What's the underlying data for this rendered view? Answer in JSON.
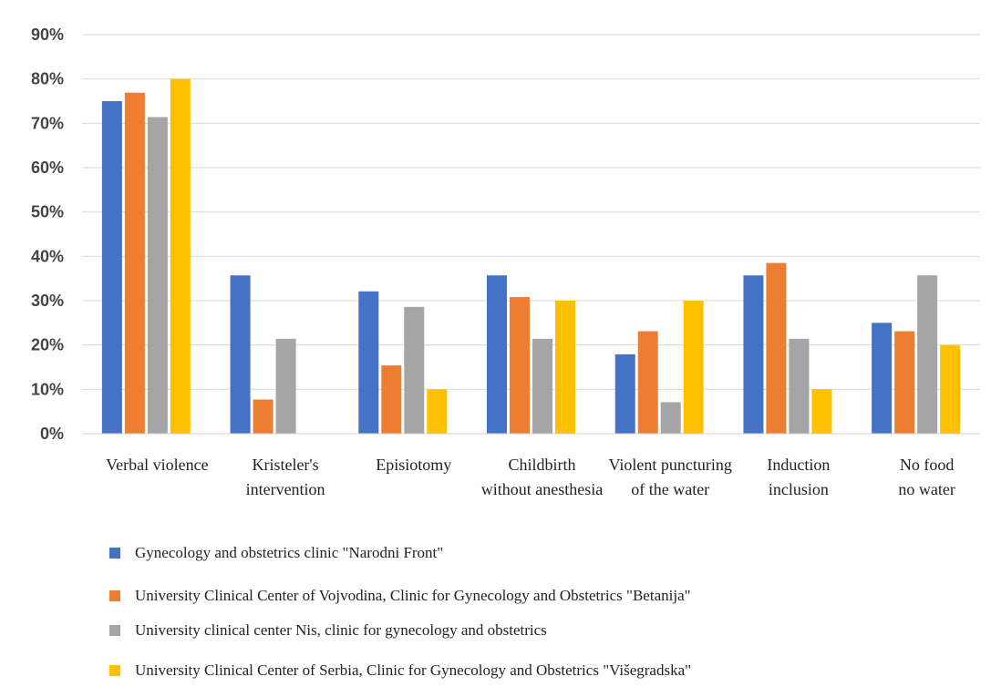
{
  "chart_data": {
    "type": "bar",
    "categories": [
      [
        "Verbal violence"
      ],
      [
        "Kristeler's",
        "intervention"
      ],
      [
        "Episiotomy"
      ],
      [
        "Childbirth",
        "without anesthesia"
      ],
      [
        "Violent puncturing",
        "of the water"
      ],
      [
        "Induction",
        "inclusion"
      ],
      [
        "No food",
        "no water"
      ]
    ],
    "ylim": [
      0,
      90
    ],
    "yticks": [
      "0%",
      "10%",
      "20%",
      "30%",
      "40%",
      "50%",
      "60%",
      "70%",
      "80%",
      "90%"
    ],
    "grid": true,
    "legend_position": "bottom",
    "series": [
      {
        "name": "Gynecology and obstetrics clinic \"Narodni Front\"",
        "color": "#4472C4",
        "values": [
          75,
          35.7,
          32.1,
          35.7,
          17.9,
          35.7,
          25
        ]
      },
      {
        "name": "University Clinical Center of Vojvodina, Clinic for Gynecology and Obstetrics \"Betanija\"",
        "color": "#ED7D31",
        "values": [
          76.9,
          7.7,
          15.4,
          30.8,
          23.1,
          38.5,
          23.1
        ]
      },
      {
        "name": "University clinical center Nis, clinic for gynecology and obstetrics",
        "color": "#A5A5A5",
        "values": [
          71.4,
          21.4,
          28.6,
          21.4,
          7.1,
          21.4,
          35.7
        ]
      },
      {
        "name": "University Clinical Center of Serbia, Clinic for Gynecology and Obstetrics \"Višegradska\"",
        "color": "#FFC000",
        "values": [
          80,
          0,
          10,
          30,
          30,
          10,
          20
        ]
      }
    ]
  }
}
